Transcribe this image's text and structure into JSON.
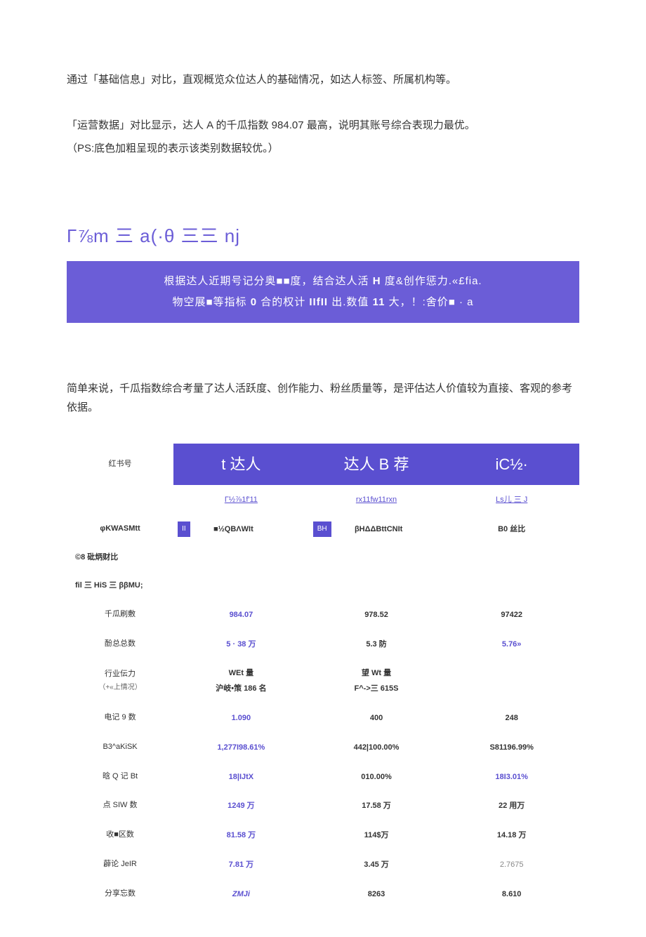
{
  "intro_para": "通过「基础信息」对比，直观概览众位达人的基础情况，如达人标签、所属机构等。",
  "para2_line1": "「运营数据」对比显示，达人 A 的千瓜指数 984.07 最高，说明其账号综合表现力最优。",
  "para2_line2": "（PS:底色加粗呈现的表示该类别数据较优。）",
  "heading": "Γ⅞m 三 a(·θ 三三 nj",
  "purple_box": {
    "line1_pre": "根据达人近期号记分奥■■度，结合达人活 ",
    "line1_bold": "H",
    "line1_post": " 度&创作惩力.«£fia.",
    "line2_pre": "物空展■等指标 ",
    "line2_b1": "0",
    "line2_mid": " 合的权计 ",
    "line2_b2": "IIfII",
    "line2_mid2": " 出.数值 ",
    "line2_b3": "11",
    "line2_post": " 大，！:舍价■ · a"
  },
  "para3": "简单来说，千瓜指数综合考量了达人活跃度、创作能力、粉丝质量等，是评估达人价值较为直接、客观的参考依据。",
  "colors": {
    "purple": "#5a4fd0",
    "purple_light": "#6b5dd7",
    "text": "#333333",
    "bg": "#ffffff"
  },
  "table": {
    "row_header_label": "红书号",
    "col_headers": [
      "t 达人",
      "达人 B 荐",
      "iC½·"
    ],
    "link_row": [
      "Γ½⅞1f'11",
      "rx11fw11rxn",
      "Ls儿 三 J"
    ],
    "badge_row": {
      "label": "φKWASMtt",
      "cells": [
        {
          "badge": "II",
          "text": "■½QBΛWIt"
        },
        {
          "badge": "BH",
          "text": "βHΔΔBttCNIt"
        },
        {
          "badge": "",
          "text": "B0 丝比"
        }
      ]
    },
    "section1": "©8 砒炳财比",
    "section2": "fil 三 HiS 三 ββMU;",
    "rows": [
      {
        "label": "千瓜刷敷",
        "sub": "",
        "vals": [
          "984.07",
          "978.52",
          "97422"
        ],
        "hl": [
          true,
          false,
          false
        ]
      },
      {
        "label": "酚总总数",
        "sub": "",
        "vals": [
          "5 · 38 万",
          "5.3 防",
          "5.76»"
        ],
        "hl": [
          true,
          false,
          true
        ]
      },
      {
        "label": "行业伝力",
        "sub": "（+«上情况）",
        "vals": [
          "WEt 量\n沪岐•策 186 名",
          "望 Wt 量\nF^->三 615S",
          ""
        ],
        "hl": [
          false,
          false,
          false
        ]
      },
      {
        "label": "电记 9 数",
        "sub": "",
        "vals": [
          "1.090",
          "400",
          "248"
        ],
        "hl": [
          true,
          false,
          false
        ]
      },
      {
        "label": "B3^aKiSK",
        "sub": "",
        "vals": [
          "1,277I98.61%",
          "442|100.00%",
          "S81196.99%"
        ],
        "hl": [
          true,
          false,
          false
        ]
      },
      {
        "label": "晗 Q 记 Bt",
        "sub": "",
        "vals": [
          "18|IJtX",
          "010.00%",
          "18I3.01%"
        ],
        "hl": [
          true,
          false,
          true
        ]
      },
      {
        "label": "点 SIW 数",
        "sub": "",
        "vals": [
          "1249 万",
          "17.58 万",
          "22 用万"
        ],
        "hl": [
          true,
          false,
          false
        ]
      },
      {
        "label": "收■区数",
        "sub": "",
        "vals": [
          "81.58 万",
          "114$万",
          "14.18 万"
        ],
        "hl": [
          true,
          false,
          false
        ]
      },
      {
        "label": "薜论 JeIR",
        "sub": "",
        "vals": [
          "7.81 万",
          "3.45 万",
          "2.7675"
        ],
        "hl": [
          true,
          false,
          false
        ],
        "last_gray": true
      },
      {
        "label": "分享忘数",
        "sub": "",
        "vals": [
          "ZMJi",
          "8263",
          "8.610"
        ],
        "hl": [
          true,
          false,
          false
        ],
        "first_ital": true
      }
    ]
  }
}
